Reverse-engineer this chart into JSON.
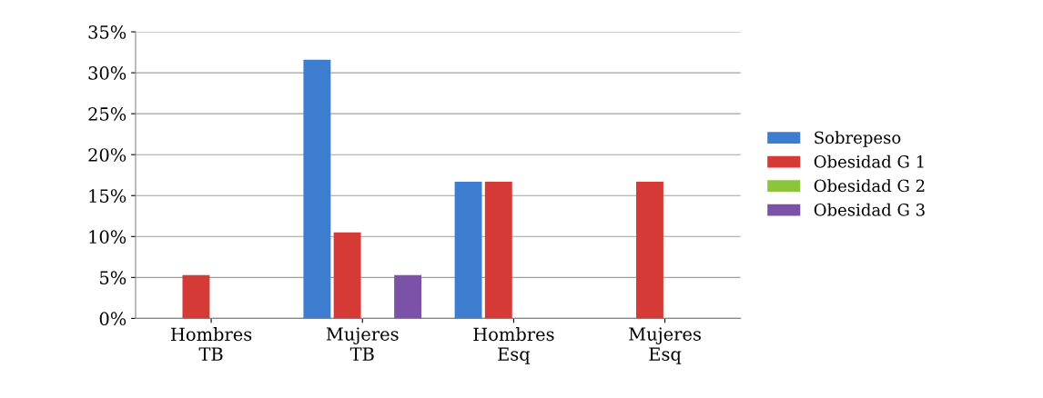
{
  "chart_data": {
    "type": "bar",
    "categories": [
      "Hombres\nTB",
      "Mujeres\nTB",
      "Hombres\nEsq",
      "Mujeres\nEsq"
    ],
    "series": [
      {
        "name": "Sobrepeso",
        "color": "#3c7dd0",
        "values": [
          0,
          31.6,
          16.7,
          0
        ]
      },
      {
        "name": "Obesidad G 1",
        "color": "#d63a36",
        "values": [
          5.3,
          10.5,
          16.7,
          16.7
        ]
      },
      {
        "name": "Obesidad G 2",
        "color": "#8cc43c",
        "values": [
          0,
          0,
          0,
          0
        ]
      },
      {
        "name": "Obesidad G 3",
        "color": "#7b52a8",
        "values": [
          0,
          5.3,
          0,
          0
        ]
      }
    ],
    "ylim": [
      0,
      35
    ],
    "yticks": [
      {
        "value": 0,
        "label": "0%"
      },
      {
        "value": 5,
        "label": "5%"
      },
      {
        "value": 10,
        "label": "10%"
      },
      {
        "value": 15,
        "label": "15%"
      },
      {
        "value": 20,
        "label": "20%"
      },
      {
        "value": 25,
        "label": "25%"
      },
      {
        "value": 30,
        "label": "30%"
      },
      {
        "value": 35,
        "label": "35%"
      }
    ],
    "grid": "y",
    "legend": "right"
  }
}
